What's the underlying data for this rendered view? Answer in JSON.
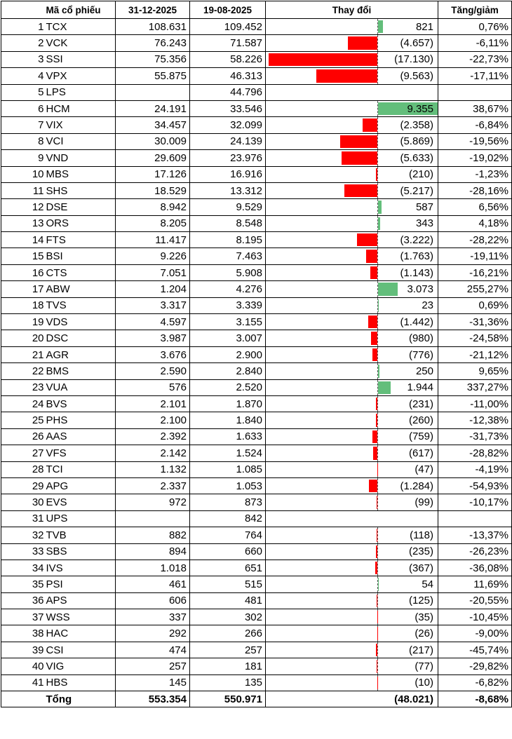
{
  "table": {
    "header": [
      "Mã cổ phiếu",
      "31-12-2025",
      "19-08-2025",
      "Thay đổi",
      "Tăng/giảm"
    ],
    "rows": [
      [
        1,
        "TCX",
        "108.631",
        "109.452",
        {
          "value": 821,
          "label": "821"
        },
        "0,76%"
      ],
      [
        2,
        "VCK",
        "76.243",
        "71.587",
        {
          "value": -4657,
          "label": "(4.657)"
        },
        "-6,11%"
      ],
      [
        3,
        "SSI",
        "75.356",
        "58.226",
        {
          "value": -17130,
          "label": "(17.130)"
        },
        "-22,73%"
      ],
      [
        4,
        "VPX",
        "55.875",
        "46.313",
        {
          "value": -9563,
          "label": "(9.563)"
        },
        "-17,11%"
      ],
      [
        5,
        "LPS",
        null,
        "44.796",
        null,
        null
      ],
      [
        6,
        "HCM",
        "24.191",
        "33.546",
        {
          "value": 9355,
          "label": "9.355"
        },
        "38,67%"
      ],
      [
        7,
        "VIX",
        "34.457",
        "32.099",
        {
          "value": -2358,
          "label": "(2.358)"
        },
        "-6,84%"
      ],
      [
        8,
        "VCI",
        "30.009",
        "24.139",
        {
          "value": -5869,
          "label": "(5.869)"
        },
        "-19,56%"
      ],
      [
        9,
        "VND",
        "29.609",
        "23.976",
        {
          "value": -5633,
          "label": "(5.633)"
        },
        "-19,02%"
      ],
      [
        10,
        "MBS",
        "17.126",
        "16.916",
        {
          "value": -210,
          "label": "(210)"
        },
        "-1,23%"
      ],
      [
        11,
        "SHS",
        "18.529",
        "13.312",
        {
          "value": -5217,
          "label": "(5.217)"
        },
        "-28,16%"
      ],
      [
        12,
        "DSE",
        "8.942",
        "9.529",
        {
          "value": 587,
          "label": "587"
        },
        "6,56%"
      ],
      [
        13,
        "ORS",
        "8.205",
        "8.548",
        {
          "value": 343,
          "label": "343"
        },
        "4,18%"
      ],
      [
        14,
        "FTS",
        "11.417",
        "8.195",
        {
          "value": -3222,
          "label": "(3.222)"
        },
        "-28,22%"
      ],
      [
        15,
        "BSI",
        "9.226",
        "7.463",
        {
          "value": -1763,
          "label": "(1.763)"
        },
        "-19,11%"
      ],
      [
        16,
        "CTS",
        "7.051",
        "5.908",
        {
          "value": -1143,
          "label": "(1.143)"
        },
        "-16,21%"
      ],
      [
        17,
        "ABW",
        "1.204",
        "4.276",
        {
          "value": 3073,
          "label": "3.073"
        },
        "255,27%"
      ],
      [
        18,
        "TVS",
        "3.317",
        "3.339",
        {
          "value": 23,
          "label": "23"
        },
        "0,69%"
      ],
      [
        19,
        "VDS",
        "4.597",
        "3.155",
        {
          "value": -1442,
          "label": "(1.442)"
        },
        "-31,36%"
      ],
      [
        20,
        "DSC",
        "3.987",
        "3.007",
        {
          "value": -980,
          "label": "(980)"
        },
        "-24,58%"
      ],
      [
        21,
        "AGR",
        "3.676",
        "2.900",
        {
          "value": -776,
          "label": "(776)"
        },
        "-21,12%"
      ],
      [
        22,
        "BMS",
        "2.590",
        "2.840",
        {
          "value": 250,
          "label": "250"
        },
        "9,65%"
      ],
      [
        23,
        "VUA",
        "576",
        "2.520",
        {
          "value": 1944,
          "label": "1.944"
        },
        "337,27%"
      ],
      [
        24,
        "BVS",
        "2.101",
        "1.870",
        {
          "value": -231,
          "label": "(231)"
        },
        "-11,00%"
      ],
      [
        25,
        "PHS",
        "2.100",
        "1.840",
        {
          "value": -260,
          "label": "(260)"
        },
        "-12,38%"
      ],
      [
        26,
        "AAS",
        "2.392",
        "1.633",
        {
          "value": -759,
          "label": "(759)"
        },
        "-31,73%"
      ],
      [
        27,
        "VFS",
        "2.142",
        "1.524",
        {
          "value": -617,
          "label": "(617)"
        },
        "-28,82%"
      ],
      [
        28,
        "TCI",
        "1.132",
        "1.085",
        {
          "value": -47,
          "label": "(47)"
        },
        "-4,19%"
      ],
      [
        29,
        "APG",
        "2.337",
        "1.053",
        {
          "value": -1284,
          "label": "(1.284)"
        },
        "-54,93%"
      ],
      [
        30,
        "EVS",
        "972",
        "873",
        {
          "value": -99,
          "label": "(99)"
        },
        "-10,17%"
      ],
      [
        31,
        "UPS",
        null,
        "842",
        null,
        null
      ],
      [
        32,
        "TVB",
        "882",
        "764",
        {
          "value": -118,
          "label": "(118)"
        },
        "-13,37%"
      ],
      [
        33,
        "SBS",
        "894",
        "660",
        {
          "value": -235,
          "label": "(235)"
        },
        "-26,23%"
      ],
      [
        34,
        "IVS",
        "1.018",
        "651",
        {
          "value": -367,
          "label": "(367)"
        },
        "-36,08%"
      ],
      [
        35,
        "PSI",
        "461",
        "515",
        {
          "value": 54,
          "label": "54"
        },
        "11,69%"
      ],
      [
        36,
        "APS",
        "606",
        "481",
        {
          "value": -125,
          "label": "(125)"
        },
        "-20,55%"
      ],
      [
        37,
        "WSS",
        "337",
        "302",
        {
          "value": -35,
          "label": "(35)"
        },
        "-10,45%"
      ],
      [
        38,
        "HAC",
        "292",
        "266",
        {
          "value": -26,
          "label": "(26)"
        },
        "-9,00%"
      ],
      [
        39,
        "CSI",
        "474",
        "257",
        {
          "value": -217,
          "label": "(217)"
        },
        "-45,74%"
      ],
      [
        40,
        "VIG",
        "257",
        "181",
        {
          "value": -77,
          "label": "(77)"
        },
        "-29,82%"
      ],
      [
        41,
        "HBS",
        "145",
        "135",
        {
          "value": -10,
          "label": "(10)"
        },
        "-6,82%"
      ]
    ],
    "total": [
      "Tổng",
      "553.354",
      "550.971",
      "(48.021)",
      "-8,68%"
    ]
  }
}
